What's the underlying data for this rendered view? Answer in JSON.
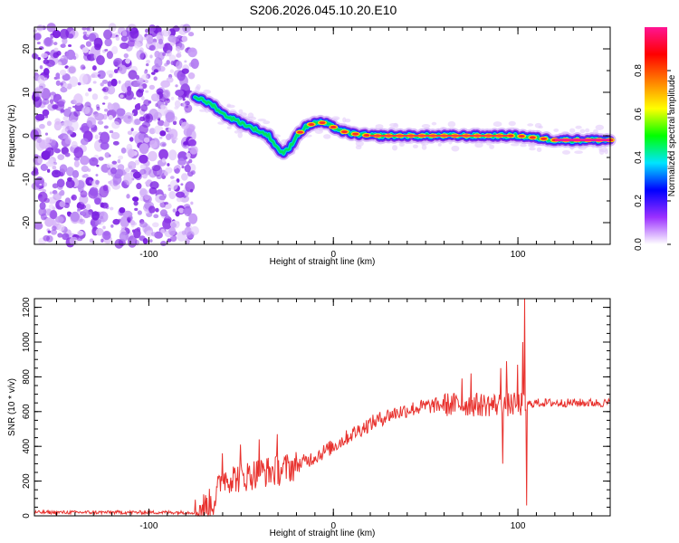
{
  "title": "S206.2026.045.10.20.E10",
  "chart_data": [
    {
      "type": "heatmap",
      "name": "spectrogram",
      "xlabel": "Height of straight line (km)",
      "ylabel": "Frequency (Hz)",
      "xlim": [
        -162,
        150
      ],
      "ylim": [
        -25,
        25
      ],
      "xticks": [
        -100,
        0,
        100
      ],
      "yticks": [
        -20,
        -10,
        0,
        10,
        20
      ],
      "noise_region_x": [
        -162,
        -75
      ],
      "ridge": [
        {
          "x": -75,
          "y": 9
        },
        {
          "x": -70,
          "y": 8
        },
        {
          "x": -65,
          "y": 7
        },
        {
          "x": -60,
          "y": 5
        },
        {
          "x": -55,
          "y": 4
        },
        {
          "x": -50,
          "y": 3
        },
        {
          "x": -45,
          "y": 2
        },
        {
          "x": -40,
          "y": 1
        },
        {
          "x": -35,
          "y": 0
        },
        {
          "x": -30,
          "y": -3
        },
        {
          "x": -27,
          "y": -4
        },
        {
          "x": -24,
          "y": -3
        },
        {
          "x": -20,
          "y": 0
        },
        {
          "x": -15,
          "y": 2
        },
        {
          "x": -10,
          "y": 3
        },
        {
          "x": -5,
          "y": 3
        },
        {
          "x": 0,
          "y": 2
        },
        {
          "x": 5,
          "y": 1
        },
        {
          "x": 10,
          "y": 0.5
        },
        {
          "x": 20,
          "y": 0
        },
        {
          "x": 60,
          "y": 0
        },
        {
          "x": 100,
          "y": 0
        },
        {
          "x": 120,
          "y": -1
        },
        {
          "x": 150,
          "y": -1
        }
      ],
      "colorbar": {
        "label": "Normalized spectral amplitude",
        "ticks": [
          0.0,
          0.2,
          0.4,
          0.6,
          0.8
        ],
        "range": [
          0,
          1
        ],
        "colors": [
          "#ffffff",
          "#9b30ff",
          "#0000ff",
          "#00e5ff",
          "#00ff00",
          "#ffff00",
          "#ff8000",
          "#ff0000",
          "#ff1493"
        ]
      }
    },
    {
      "type": "line",
      "name": "snr",
      "xlabel": "Height of straight line (km)",
      "ylabel": "SNR (10 * v/v)",
      "xlim": [
        -162,
        150
      ],
      "ylim": [
        0,
        1250
      ],
      "xticks": [
        -100,
        0,
        100
      ],
      "yticks": [
        0,
        200,
        400,
        600,
        800,
        1000,
        1200
      ],
      "color": "#e8322e",
      "envelope": [
        {
          "x": -162,
          "y": 20
        },
        {
          "x": -75,
          "y": 20
        },
        {
          "x": -65,
          "y": 80
        },
        {
          "x": -60,
          "y": 220
        },
        {
          "x": -50,
          "y": 220
        },
        {
          "x": -40,
          "y": 250
        },
        {
          "x": -30,
          "y": 260
        },
        {
          "x": -20,
          "y": 290
        },
        {
          "x": -10,
          "y": 340
        },
        {
          "x": 0,
          "y": 400
        },
        {
          "x": 10,
          "y": 470
        },
        {
          "x": 20,
          "y": 530
        },
        {
          "x": 30,
          "y": 580
        },
        {
          "x": 40,
          "y": 610
        },
        {
          "x": 50,
          "y": 630
        },
        {
          "x": 60,
          "y": 640
        },
        {
          "x": 80,
          "y": 640
        },
        {
          "x": 100,
          "y": 640
        },
        {
          "x": 105,
          "y": 640
        },
        {
          "x": 110,
          "y": 650
        },
        {
          "x": 150,
          "y": 650
        }
      ],
      "spikes": [
        {
          "x": -60,
          "y": 360
        },
        {
          "x": -50,
          "y": 410
        },
        {
          "x": -40,
          "y": 440
        },
        {
          "x": -30,
          "y": 470
        },
        {
          "x": 70,
          "y": 790
        },
        {
          "x": 75,
          "y": 820
        },
        {
          "x": 91,
          "y": 850
        },
        {
          "x": 94,
          "y": 890
        },
        {
          "x": 100,
          "y": 870
        },
        {
          "x": 103,
          "y": 1000
        },
        {
          "x": 104,
          "y": 1250
        },
        {
          "x": 105,
          "y": 60
        },
        {
          "x": 92,
          "y": 300
        }
      ]
    }
  ]
}
